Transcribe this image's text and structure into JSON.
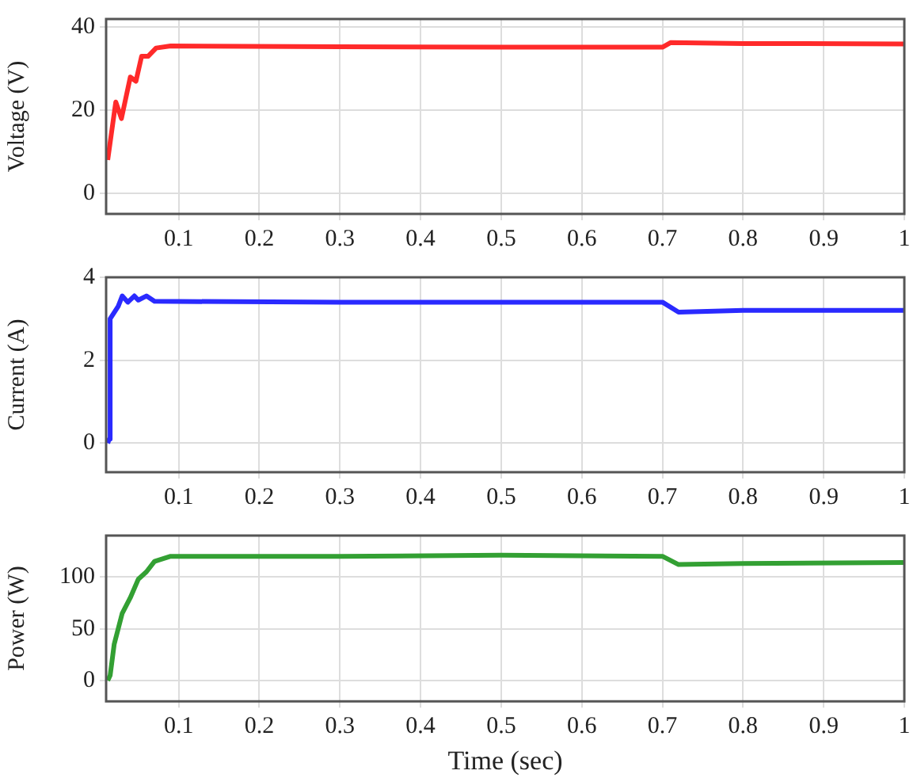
{
  "chart_data": [
    {
      "type": "line",
      "ylabel": "Voltage (V)",
      "xlim": [
        0.01,
        1
      ],
      "xticks": [
        0.1,
        0.2,
        0.3,
        0.4,
        0.5,
        0.6,
        0.7,
        0.8,
        0.9,
        1
      ],
      "ylim": [
        -5,
        42
      ],
      "yticks": [
        0,
        20,
        40
      ],
      "grid": true,
      "legend": false,
      "marker": "none",
      "series": [
        {
          "color": "#ff2a2a",
          "x": [
            0.012,
            0.022,
            0.029,
            0.04,
            0.047,
            0.054,
            0.062,
            0.072,
            0.09,
            0.3,
            0.5,
            0.7,
            0.71,
            0.8,
            1
          ],
          "values": [
            8,
            22,
            18,
            28,
            27,
            33,
            33,
            35,
            35.5,
            35.3,
            35.2,
            35.2,
            36.3,
            36.1,
            36
          ]
        }
      ]
    },
    {
      "type": "line",
      "ylabel": "Current (A)",
      "xlim": [
        0.01,
        1
      ],
      "xticks": [
        0.1,
        0.2,
        0.3,
        0.4,
        0.5,
        0.6,
        0.7,
        0.8,
        0.9,
        1
      ],
      "ylim": [
        -0.7,
        4
      ],
      "yticks": [
        0,
        2,
        4
      ],
      "grid": true,
      "legend": false,
      "marker": "none",
      "series": [
        {
          "color": "#2a2aff",
          "x": [
            0.012,
            0.014,
            0.015,
            0.025,
            0.03,
            0.037,
            0.045,
            0.05,
            0.06,
            0.07,
            0.3,
            0.5,
            0.7,
            0.72,
            0.8,
            1
          ],
          "values": [
            0,
            0.1,
            3,
            3.3,
            3.55,
            3.4,
            3.55,
            3.45,
            3.55,
            3.42,
            3.4,
            3.4,
            3.4,
            3.16,
            3.2,
            3.2
          ]
        }
      ]
    },
    {
      "type": "line",
      "ylabel": "Power (W)",
      "xlabel": "Time (sec)",
      "xlim": [
        0.01,
        1
      ],
      "xticks": [
        0.1,
        0.2,
        0.3,
        0.4,
        0.5,
        0.6,
        0.7,
        0.8,
        0.9,
        1
      ],
      "ylim": [
        -20,
        140
      ],
      "yticks": [
        0,
        50,
        100
      ],
      "grid": true,
      "legend": false,
      "marker": "none",
      "series": [
        {
          "color": "#33a033",
          "x": [
            0.012,
            0.015,
            0.02,
            0.03,
            0.04,
            0.05,
            0.06,
            0.07,
            0.09,
            0.3,
            0.5,
            0.7,
            0.72,
            0.8,
            1
          ],
          "values": [
            0,
            5,
            35,
            65,
            80,
            98,
            105,
            115,
            120,
            120,
            121,
            120,
            112,
            113,
            114
          ]
        }
      ]
    }
  ]
}
